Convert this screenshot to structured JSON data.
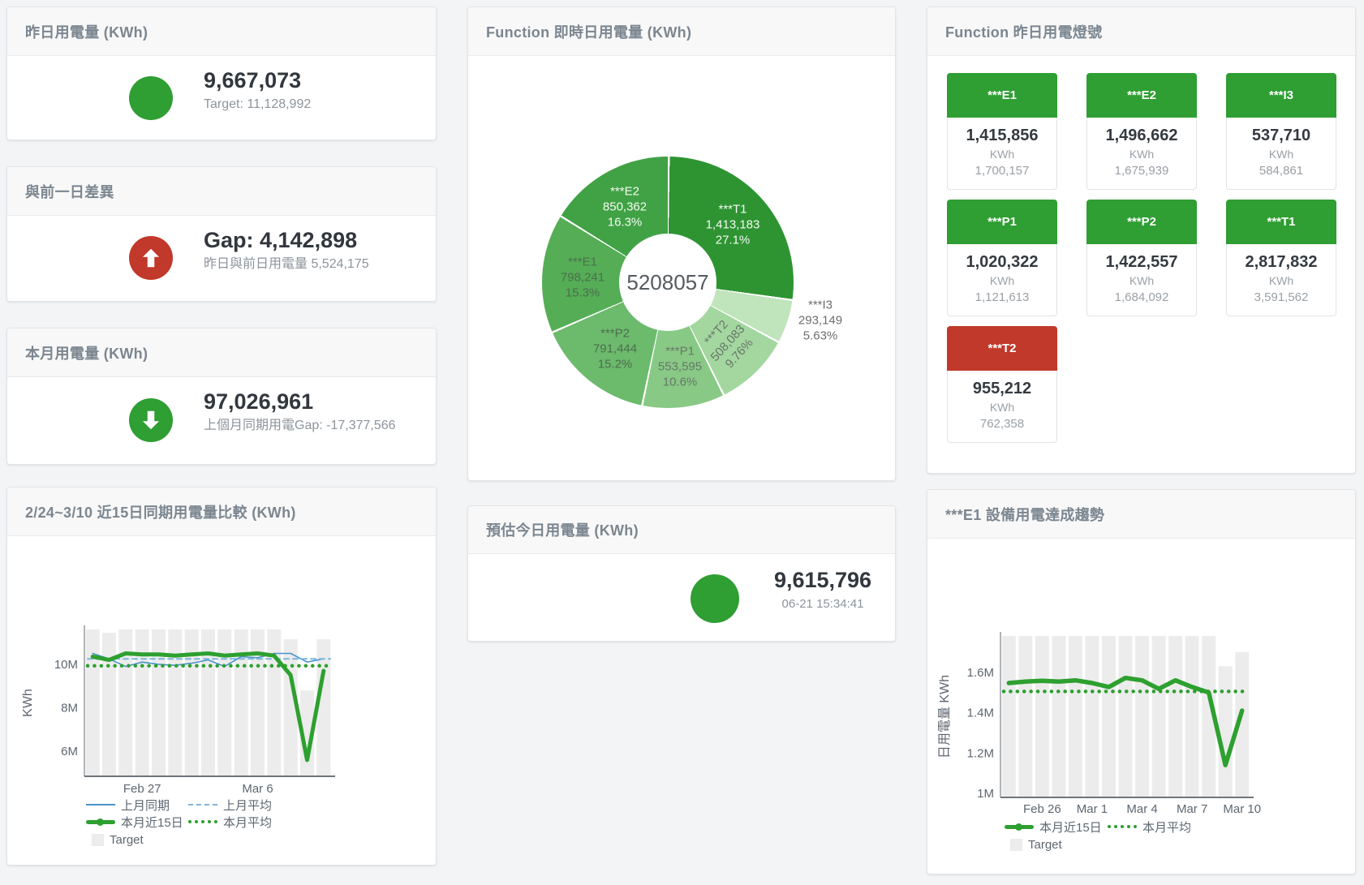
{
  "colors": {
    "green": "#2f9e33",
    "red": "#c0392b",
    "blue": "#4a94c9",
    "blue_light": "#7fb5de",
    "target_gray": "#ececec"
  },
  "cards": {
    "yesterday": {
      "title": "昨日用電量 (KWh)",
      "value": "9,667,073",
      "subtitle": "Target: 11,128,992"
    },
    "day_gap": {
      "title": "與前一日差異",
      "value": "Gap: 4,142,898",
      "subtitle": "昨日與前日用電量 5,524,175"
    },
    "month": {
      "title": "本月用電量 (KWh)",
      "value": "97,026,961",
      "subtitle": "上個月同期用電Gap: -17,377,566"
    },
    "compare": {
      "title": "2/24~3/10 近15日同期用電量比較 (KWh)"
    },
    "realtime": {
      "title": "Function 即時日用電量 (KWh)"
    },
    "estimate": {
      "title": "預估今日用電量 (KWh)",
      "value": "9,615,796",
      "subtitle": "06-21 15:34:41"
    },
    "lights": {
      "title": "Function 昨日用電燈號",
      "tiles": [
        {
          "name": "***E1",
          "value": "1,415,856",
          "unit": "KWh",
          "target": "1,700,157",
          "status_color": "#2f9e33"
        },
        {
          "name": "***E2",
          "value": "1,496,662",
          "unit": "KWh",
          "target": "1,675,939",
          "status_color": "#2f9e33"
        },
        {
          "name": "***I3",
          "value": "537,710",
          "unit": "KWh",
          "target": "584,861",
          "status_color": "#2f9e33"
        },
        {
          "name": "***P1",
          "value": "1,020,322",
          "unit": "KWh",
          "target": "1,121,613",
          "status_color": "#2f9e33"
        },
        {
          "name": "***P2",
          "value": "1,422,557",
          "unit": "KWh",
          "target": "1,684,092",
          "status_color": "#2f9e33"
        },
        {
          "name": "***T1",
          "value": "2,817,832",
          "unit": "KWh",
          "target": "3,591,562",
          "status_color": "#2f9e33"
        },
        {
          "name": "***T2",
          "value": "955,212",
          "unit": "KWh",
          "target": "762,358",
          "status_color": "#c0392b"
        }
      ]
    },
    "e1_trend": {
      "title": "***E1 設備用電達成趨勢"
    }
  },
  "chart_data": [
    {
      "id": "realtime_donut",
      "type": "pie",
      "title": "Function 即時日用電量 (KWh)",
      "center_total": "5208057",
      "slices": [
        {
          "name": "***T1",
          "value": 1413183,
          "pct": 27.1,
          "display_value": "1,413,183",
          "display_pct": "27.1%",
          "color": "#2e9432"
        },
        {
          "name": "***I3",
          "value": 293149,
          "pct": 5.63,
          "display_value": "293,149",
          "display_pct": "5.63%",
          "color": "#c0e4bb"
        },
        {
          "name": "***T2",
          "value": 508083,
          "pct": 9.76,
          "display_value": "508,083",
          "display_pct": "9.76%",
          "color": "#a3d79f"
        },
        {
          "name": "***P1",
          "value": 553595,
          "pct": 10.6,
          "display_value": "553,595",
          "display_pct": "10.6%",
          "color": "#88c985"
        },
        {
          "name": "***P2",
          "value": 791444,
          "pct": 15.2,
          "display_value": "791,444",
          "display_pct": "15.2%",
          "color": "#6cba6c"
        },
        {
          "name": "***E1",
          "value": 798241,
          "pct": 15.3,
          "display_value": "798,241",
          "display_pct": "15.3%",
          "color": "#55ad56"
        },
        {
          "name": "***E2",
          "value": 850362,
          "pct": 16.3,
          "display_value": "850,362",
          "display_pct": "16.3%",
          "color": "#40a244"
        }
      ]
    },
    {
      "id": "compare15",
      "type": "line",
      "title": "2/24~3/10 近15日同期用電量比較 (KWh)",
      "ylabel": "KWh",
      "unit": "millions of KWh",
      "ylim": [
        4.85,
        11.6
      ],
      "yticks": [
        {
          "v": 6,
          "label": "6M"
        },
        {
          "v": 8,
          "label": "8M"
        },
        {
          "v": 10,
          "label": "10M"
        }
      ],
      "xticks": [
        {
          "i": 3,
          "label": "Feb 27"
        },
        {
          "i": 10,
          "label": "Mar 6"
        }
      ],
      "categories": [
        "Feb 24",
        "Feb 25",
        "Feb 26",
        "Feb 27",
        "Feb 28",
        "Mar 1",
        "Mar 2",
        "Mar 3",
        "Mar 4",
        "Mar 5",
        "Mar 6",
        "Mar 7",
        "Mar 8",
        "Mar 9",
        "Mar 10"
      ],
      "bars": {
        "name": "Target",
        "color": "#ececec",
        "values": [
          11.6,
          11.45,
          11.6,
          11.6,
          11.6,
          11.6,
          11.6,
          11.6,
          11.6,
          11.6,
          11.6,
          11.6,
          11.15,
          8.8,
          11.15
        ]
      },
      "series": [
        {
          "name": "上月同期",
          "style": "solid",
          "color": "#4a94c9",
          "width": 1.6,
          "values": [
            10.5,
            10.25,
            9.9,
            10.1,
            10.0,
            9.95,
            10.05,
            10.2,
            9.9,
            10.35,
            10.3,
            10.5,
            10.5,
            10.1,
            10.25
          ]
        },
        {
          "name": "上月平均",
          "style": "dashed",
          "color": "#7fb5de",
          "width": 2,
          "constant": 10.25
        },
        {
          "name": "本月近15日",
          "style": "solid",
          "color": "#2da02f",
          "width": 5,
          "values": [
            10.35,
            10.2,
            10.5,
            10.45,
            10.45,
            10.4,
            10.45,
            10.5,
            10.4,
            10.45,
            10.5,
            10.4,
            9.5,
            5.6,
            9.7
          ]
        },
        {
          "name": "本月平均",
          "style": "dotted",
          "color": "#2da02f",
          "width": 4.5,
          "constant": 9.93
        }
      ],
      "legend": [
        "上月同期",
        "上月平均",
        "本月近15日",
        "本月平均",
        "Target"
      ]
    },
    {
      "id": "e1_trend",
      "type": "line",
      "title": "***E1 設備用電達成趨勢",
      "ylabel": "日用電量 KWh",
      "unit": "millions of KWh",
      "ylim": [
        0.98,
        1.78
      ],
      "yticks": [
        {
          "v": 1,
          "label": "1M"
        },
        {
          "v": 1.2,
          "label": "1.2M"
        },
        {
          "v": 1.4,
          "label": "1.4M"
        },
        {
          "v": 1.6,
          "label": "1.6M"
        }
      ],
      "xticks": [
        {
          "i": 2,
          "label": "Feb 26"
        },
        {
          "i": 5,
          "label": "Mar 1"
        },
        {
          "i": 8,
          "label": "Mar 4"
        },
        {
          "i": 11,
          "label": "Mar 7"
        },
        {
          "i": 14,
          "label": "Mar 10"
        }
      ],
      "categories": [
        "Feb 24",
        "Feb 25",
        "Feb 26",
        "Feb 27",
        "Feb 28",
        "Mar 1",
        "Mar 2",
        "Mar 3",
        "Mar 4",
        "Mar 5",
        "Mar 6",
        "Mar 7",
        "Mar 8",
        "Mar 9",
        "Mar 10"
      ],
      "bars": {
        "name": "Target",
        "color": "#ececec",
        "values": [
          1.78,
          1.78,
          1.78,
          1.78,
          1.78,
          1.78,
          1.78,
          1.78,
          1.78,
          1.78,
          1.78,
          1.78,
          1.78,
          1.63,
          1.7
        ]
      },
      "series": [
        {
          "name": "本月近15日",
          "style": "solid",
          "color": "#2da02f",
          "width": 5.5,
          "values": [
            1.547,
            1.554,
            1.558,
            1.554,
            1.56,
            1.547,
            1.527,
            1.572,
            1.56,
            1.518,
            1.56,
            1.527,
            1.5,
            1.14,
            1.41
          ]
        },
        {
          "name": "本月平均",
          "style": "dotted",
          "color": "#2da02f",
          "width": 4.5,
          "constant": 1.505
        }
      ],
      "legend": [
        "本月近15日",
        "本月平均",
        "Target"
      ]
    }
  ]
}
